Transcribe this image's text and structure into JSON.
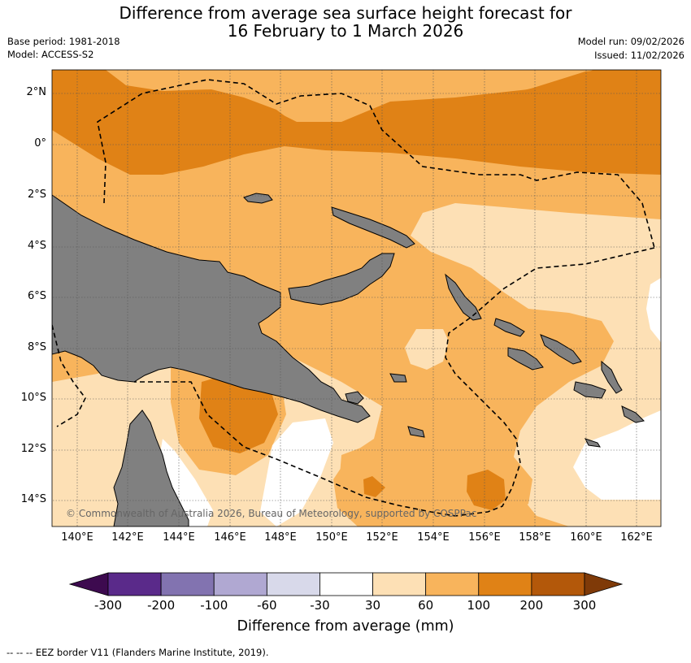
{
  "title_line1": "Difference from average sea surface height forecast for",
  "title_line2": "16 February to 1 March 2026",
  "base_period": "Base period: 1981-2018",
  "model": "Model: ACCESS-S2",
  "model_run": "Model run: 09/02/2026",
  "issued": "Issued: 11/02/2026",
  "copyright": "© Commonwealth of Australia 2026, Bureau of Meteorology, supported by COSPPac",
  "lat_labels": [
    "2°N",
    "0°",
    "2°S",
    "4°S",
    "6°S",
    "8°S",
    "10°S",
    "12°S",
    "14°S"
  ],
  "lon_labels": [
    "140°E",
    "142°E",
    "144°E",
    "146°E",
    "148°E",
    "150°E",
    "152°E",
    "154°E",
    "156°E",
    "158°E",
    "160°E",
    "162°E"
  ],
  "colorbar": {
    "title": "Difference from average (mm)",
    "tick_labels": [
      "-300",
      "-200",
      "-100",
      "-60",
      "-30",
      "30",
      "60",
      "100",
      "200",
      "300"
    ],
    "colors": [
      "#3d0a4f",
      "#5a2a8a",
      "#8273b0",
      "#b0a8d2",
      "#d8d9ea",
      "#ffffff",
      "#fde0b5",
      "#f8b45c",
      "#e08216",
      "#b3580a",
      "#7f3a08"
    ]
  },
  "legend_footer": "--  --  -- EEZ border V11 (Flanders Marine Institute, 2019).",
  "colors": {
    "land": "#808080",
    "grid": "#555555"
  }
}
